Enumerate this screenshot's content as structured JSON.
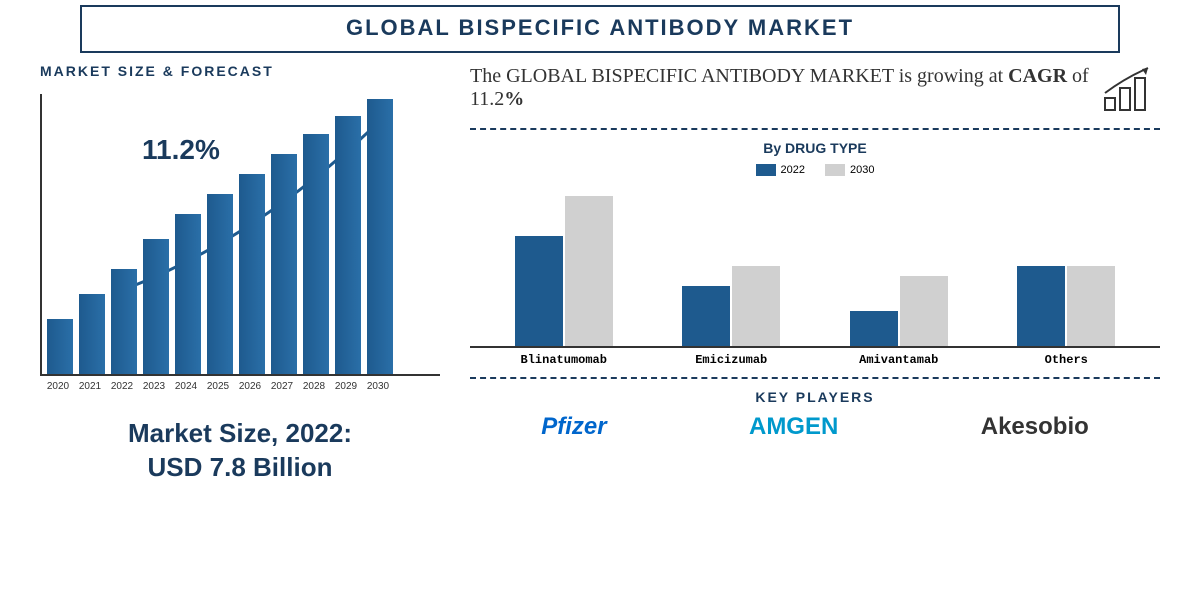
{
  "header": {
    "title": "GLOBAL BISPECIFIC ANTIBODY MARKET"
  },
  "forecast": {
    "title": "MARKET SIZE & FORECAST",
    "cagr_label": "11.2%",
    "bar_color": "#1e5a8e",
    "years": [
      "2020",
      "2021",
      "2022",
      "2023",
      "2024",
      "2025",
      "2026",
      "2027",
      "2028",
      "2029",
      "2030"
    ],
    "heights": [
      55,
      80,
      105,
      135,
      160,
      180,
      200,
      220,
      240,
      258,
      275
    ],
    "arrow_color": "#1e5a8e"
  },
  "market_size": {
    "line1": "Market Size, 2022:",
    "line2": "USD 7.8 Billion"
  },
  "headline": {
    "prefix": "The GLOBAL BISPECIFIC ANTIBODY MARKET is growing at ",
    "cagr_word": "CAGR",
    "of_word": " of 11.2",
    "pct": "%"
  },
  "drug_chart": {
    "title": "By DRUG TYPE",
    "legend": [
      {
        "label": "2022",
        "color": "#1e5a8e"
      },
      {
        "label": "2030",
        "color": "#d0d0d0"
      }
    ],
    "categories": [
      "Blinatumomab",
      "Emicizumab",
      "Amivantamab",
      "Others"
    ],
    "values_2022": [
      110,
      60,
      35,
      80
    ],
    "values_2030": [
      150,
      80,
      70,
      80
    ],
    "color_2022": "#1e5a8e",
    "color_2030": "#d0d0d0"
  },
  "key_players": {
    "title": "KEY PLAYERS",
    "players": [
      {
        "name": "Pfizer",
        "color": "#0066cc"
      },
      {
        "name": "AMGEN",
        "color": "#0099cc"
      },
      {
        "name": "Akesobio",
        "color": "#333333"
      }
    ]
  }
}
